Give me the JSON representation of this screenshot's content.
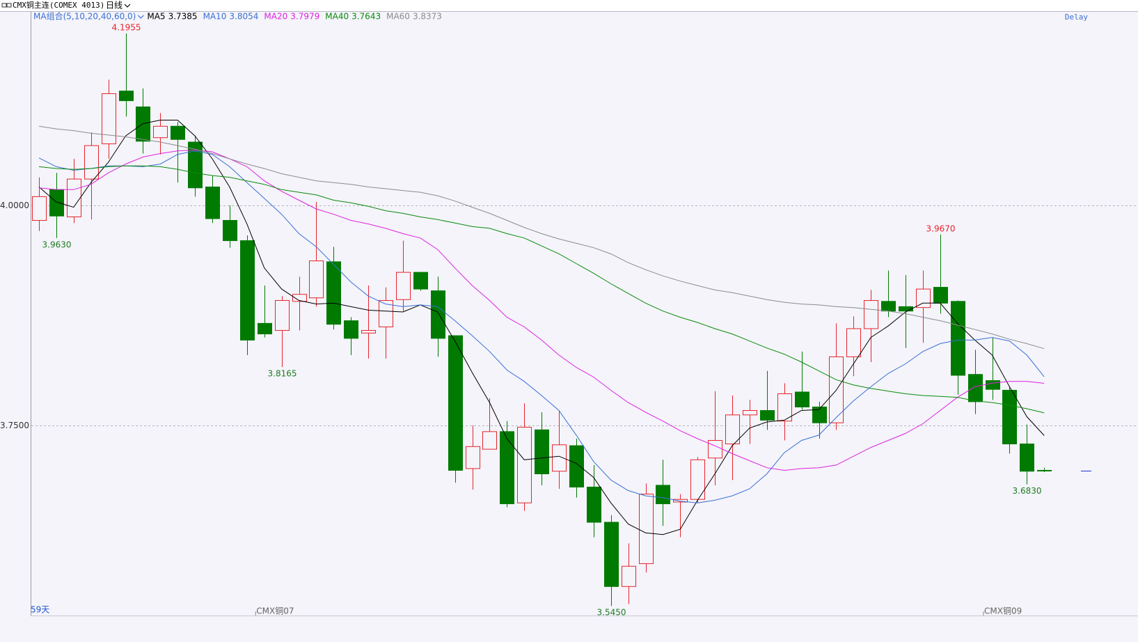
{
  "chart_data": {
    "type": "candlestick",
    "title": "CMX铜主连(COMEX 4013)",
    "period": "日线",
    "indicator": "MA组合(5,10,20,40,60,0)",
    "status": "Delay",
    "days_label": "59天",
    "categories": [
      null,
      null,
      null,
      null,
      null,
      null,
      null,
      null,
      null,
      null,
      null,
      null,
      null,
      "CMX铜07",
      null,
      null,
      null,
      null,
      null,
      null,
      null,
      null,
      null,
      null,
      null,
      null,
      null,
      null,
      null,
      null,
      null,
      null,
      null,
      null,
      null,
      null,
      null,
      null,
      null,
      null,
      null,
      null,
      null,
      null,
      null,
      null,
      null,
      null,
      null,
      null,
      null,
      null,
      null,
      null,
      null,
      "CMX铜09",
      null,
      null,
      null
    ],
    "open": [
      3.983,
      4.018,
      3.987,
      4.03,
      4.07,
      4.13,
      4.112,
      4.077,
      4.09,
      4.072,
      4.021,
      3.983,
      3.96,
      3.866,
      3.858,
      3.891,
      3.895,
      3.936,
      3.869,
      3.855,
      3.862,
      3.893,
      3.924,
      3.903,
      3.852,
      3.701,
      3.723,
      3.743,
      3.662,
      3.745,
      3.698,
      3.727,
      3.68,
      3.64,
      3.567,
      3.593,
      3.682,
      3.663,
      3.666,
      3.713,
      3.729,
      3.762,
      3.767,
      3.755,
      3.788,
      3.771,
      3.753,
      3.828,
      3.86,
      3.891,
      3.885,
      3.884,
      3.907,
      3.891,
      3.808,
      3.801,
      3.79,
      3.729,
      3.699
    ],
    "high": [
      4.032,
      4.037,
      4.053,
      4.083,
      4.143,
      4.1955,
      4.133,
      4.105,
      4.095,
      4.079,
      4.034,
      4.0,
      3.966,
      3.909,
      3.897,
      3.919,
      4.004,
      3.953,
      3.873,
      3.909,
      3.907,
      3.96,
      3.924,
      3.919,
      3.852,
      3.75,
      3.781,
      3.755,
      3.775,
      3.765,
      3.767,
      3.735,
      3.705,
      3.648,
      3.616,
      3.684,
      3.711,
      3.672,
      3.714,
      3.789,
      3.784,
      3.779,
      3.812,
      3.798,
      3.834,
      3.777,
      3.866,
      3.874,
      3.904,
      3.926,
      3.921,
      3.926,
      3.967,
      3.892,
      3.836,
      3.85,
      3.794,
      3.751,
      3.702
    ],
    "low": [
      3.971,
      3.963,
      3.98,
      3.984,
      4.053,
      4.101,
      4.059,
      4.058,
      4.026,
      4.01,
      3.98,
      3.952,
      3.83,
      3.85,
      3.8165,
      3.858,
      3.885,
      3.859,
      3.83,
      3.826,
      3.826,
      3.88,
      3.903,
      3.828,
      3.685,
      3.677,
      3.723,
      3.657,
      3.653,
      3.682,
      3.678,
      3.668,
      3.623,
      3.545,
      3.547,
      3.583,
      3.636,
      3.623,
      3.662,
      3.682,
      3.688,
      3.729,
      3.745,
      3.733,
      3.768,
      3.735,
      3.745,
      3.806,
      3.822,
      3.873,
      3.838,
      3.844,
      3.877,
      3.785,
      3.763,
      3.779,
      3.718,
      3.683,
      3.697
    ],
    "close": [
      4.01,
      3.988,
      4.03,
      4.068,
      4.127,
      4.119,
      4.073,
      4.09,
      4.075,
      4.02,
      3.985,
      3.96,
      3.847,
      3.854,
      3.892,
      3.899,
      3.937,
      3.865,
      3.849,
      3.858,
      3.892,
      3.924,
      3.905,
      3.849,
      3.699,
      3.726,
      3.743,
      3.661,
      3.748,
      3.695,
      3.728,
      3.68,
      3.64,
      3.567,
      3.59,
      3.672,
      3.661,
      3.666,
      3.711,
      3.733,
      3.762,
      3.767,
      3.756,
      3.786,
      3.771,
      3.753,
      3.828,
      3.86,
      3.892,
      3.88,
      3.88,
      3.905,
      3.889,
      3.807,
      3.777,
      3.791,
      3.729,
      3.698,
      3.699
    ],
    "high_labels": [
      null,
      null,
      null,
      null,
      null,
      "4.1955",
      null,
      null,
      null,
      null,
      null,
      null,
      null,
      null,
      null,
      null,
      null,
      null,
      null,
      null,
      null,
      null,
      null,
      null,
      null,
      null,
      null,
      null,
      null,
      null,
      null,
      null,
      null,
      null,
      null,
      null,
      null,
      null,
      null,
      null,
      null,
      null,
      null,
      null,
      null,
      null,
      null,
      null,
      null,
      null,
      null,
      null,
      "3.9670",
      null,
      null,
      null,
      null,
      null,
      null
    ],
    "low_labels": [
      null,
      "3.9630",
      null,
      null,
      null,
      null,
      null,
      null,
      null,
      null,
      null,
      null,
      null,
      null,
      "3.8165",
      null,
      null,
      null,
      null,
      null,
      null,
      null,
      null,
      null,
      null,
      null,
      null,
      null,
      null,
      null,
      null,
      null,
      null,
      "3.5450",
      null,
      null,
      null,
      null,
      null,
      null,
      null,
      null,
      null,
      null,
      null,
      null,
      null,
      null,
      null,
      null,
      null,
      null,
      null,
      null,
      null,
      null,
      null,
      "3.6830",
      null
    ],
    "up_color": "#e8232a",
    "down_color": "#007a00",
    "series": [
      {
        "name": "MA5",
        "color": "#000000",
        "values": [
          4.021,
          4.004,
          3.998,
          4.026,
          4.049,
          4.079,
          4.093,
          4.097,
          4.097,
          4.079,
          4.053,
          4.021,
          3.979,
          3.929,
          3.905,
          3.892,
          3.888,
          3.889,
          3.885,
          3.881,
          3.88,
          3.879,
          3.887,
          3.879,
          3.846,
          3.81,
          3.776,
          3.735,
          3.711,
          3.713,
          3.715,
          3.707,
          3.691,
          3.662,
          3.638,
          3.628,
          3.626,
          3.632,
          3.665,
          3.695,
          3.727,
          3.747,
          3.754,
          3.756,
          3.767,
          3.768,
          3.79,
          3.82,
          3.85,
          3.863,
          3.879,
          3.889,
          3.889,
          3.866,
          3.847,
          3.83,
          3.794,
          3.76,
          3.7385
        ]
      },
      {
        "name": "MA10",
        "color": "#3b6fd4",
        "values": [
          4.054,
          4.044,
          4.04,
          4.042,
          4.045,
          4.045,
          4.044,
          4.047,
          4.058,
          4.062,
          4.058,
          4.044,
          4.026,
          4.008,
          3.99,
          3.968,
          3.953,
          3.933,
          3.913,
          3.897,
          3.888,
          3.885,
          3.887,
          3.885,
          3.869,
          3.852,
          3.834,
          3.813,
          3.8,
          3.784,
          3.767,
          3.739,
          3.709,
          3.688,
          3.676,
          3.67,
          3.668,
          3.664,
          3.662,
          3.665,
          3.67,
          3.678,
          3.695,
          3.719,
          3.733,
          3.739,
          3.759,
          3.778,
          3.794,
          3.809,
          3.82,
          3.834,
          3.843,
          3.847,
          3.847,
          3.85,
          3.846,
          3.83,
          3.8054
        ]
      },
      {
        "name": "MA20",
        "color": "#e020e0",
        "values": [
          4.02,
          4.018,
          4.018,
          4.024,
          4.037,
          4.047,
          4.055,
          4.059,
          4.062,
          4.063,
          4.061,
          4.053,
          4.044,
          4.028,
          4.016,
          4.006,
          3.996,
          3.99,
          3.983,
          3.979,
          3.974,
          3.968,
          3.963,
          3.95,
          3.929,
          3.909,
          3.892,
          3.873,
          3.862,
          3.847,
          3.83,
          3.816,
          3.805,
          3.79,
          3.776,
          3.765,
          3.755,
          3.744,
          3.735,
          3.727,
          3.718,
          3.71,
          3.702,
          3.699,
          3.701,
          3.702,
          3.705,
          3.715,
          3.725,
          3.733,
          3.741,
          3.752,
          3.767,
          3.782,
          3.794,
          3.798,
          3.8,
          3.8,
          3.7979
        ]
      },
      {
        "name": "MA40",
        "color": "#0a8a0a",
        "values": [
          4.044,
          4.042,
          4.041,
          4.042,
          4.044,
          4.045,
          4.045,
          4.044,
          4.041,
          4.037,
          4.034,
          4.032,
          4.028,
          4.024,
          4.018,
          4.015,
          4.012,
          4.006,
          4.003,
          3.999,
          3.994,
          3.991,
          3.987,
          3.984,
          3.98,
          3.976,
          3.974,
          3.968,
          3.963,
          3.954,
          3.945,
          3.934,
          3.923,
          3.911,
          3.9,
          3.889,
          3.88,
          3.873,
          3.867,
          3.86,
          3.854,
          3.846,
          3.838,
          3.831,
          3.822,
          3.812,
          3.802,
          3.796,
          3.792,
          3.789,
          3.786,
          3.784,
          3.783,
          3.782,
          3.778,
          3.776,
          3.773,
          3.769,
          3.7643
        ]
      },
      {
        "name": "MA60",
        "color": "#8c8c8c",
        "values": [
          4.09,
          4.087,
          4.085,
          4.082,
          4.08,
          4.078,
          4.075,
          4.072,
          4.068,
          4.064,
          4.059,
          4.053,
          4.047,
          4.042,
          4.036,
          4.032,
          4.028,
          4.026,
          4.024,
          4.021,
          4.019,
          4.017,
          4.015,
          4.011,
          4.005,
          3.998,
          3.991,
          3.983,
          3.975,
          3.968,
          3.962,
          3.957,
          3.952,
          3.945,
          3.935,
          3.927,
          3.92,
          3.914,
          3.909,
          3.904,
          3.901,
          3.897,
          3.893,
          3.89,
          3.888,
          3.887,
          3.885,
          3.884,
          3.882,
          3.88,
          3.877,
          3.873,
          3.869,
          3.864,
          3.859,
          3.854,
          3.848,
          3.843,
          3.8373
        ]
      }
    ],
    "ylim": [
      3.534,
      4.22
    ],
    "yticks": [
      {
        "value": 3.75,
        "label": "3.7500"
      },
      {
        "value": 4,
        "label": "4.0000"
      }
    ],
    "grid": true
  }
}
